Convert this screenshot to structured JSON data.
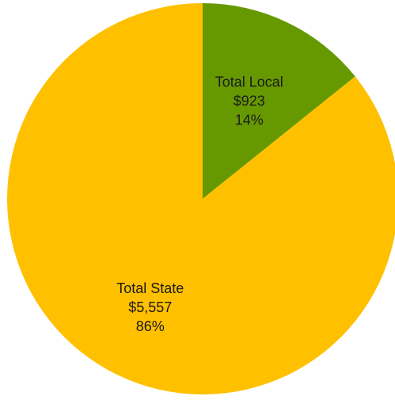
{
  "chart_data": {
    "type": "pie",
    "title": "",
    "slices": [
      {
        "label": "Total Local",
        "value": 923,
        "value_label": "$923",
        "percent_label": "14%",
        "color": "#669900"
      },
      {
        "label": "Total State",
        "value": 5557,
        "value_label": "$5,557",
        "percent_label": "86%",
        "color": "#FFC000"
      }
    ],
    "start_angle_deg": 0,
    "direction": "clockwise",
    "legend": "none"
  }
}
